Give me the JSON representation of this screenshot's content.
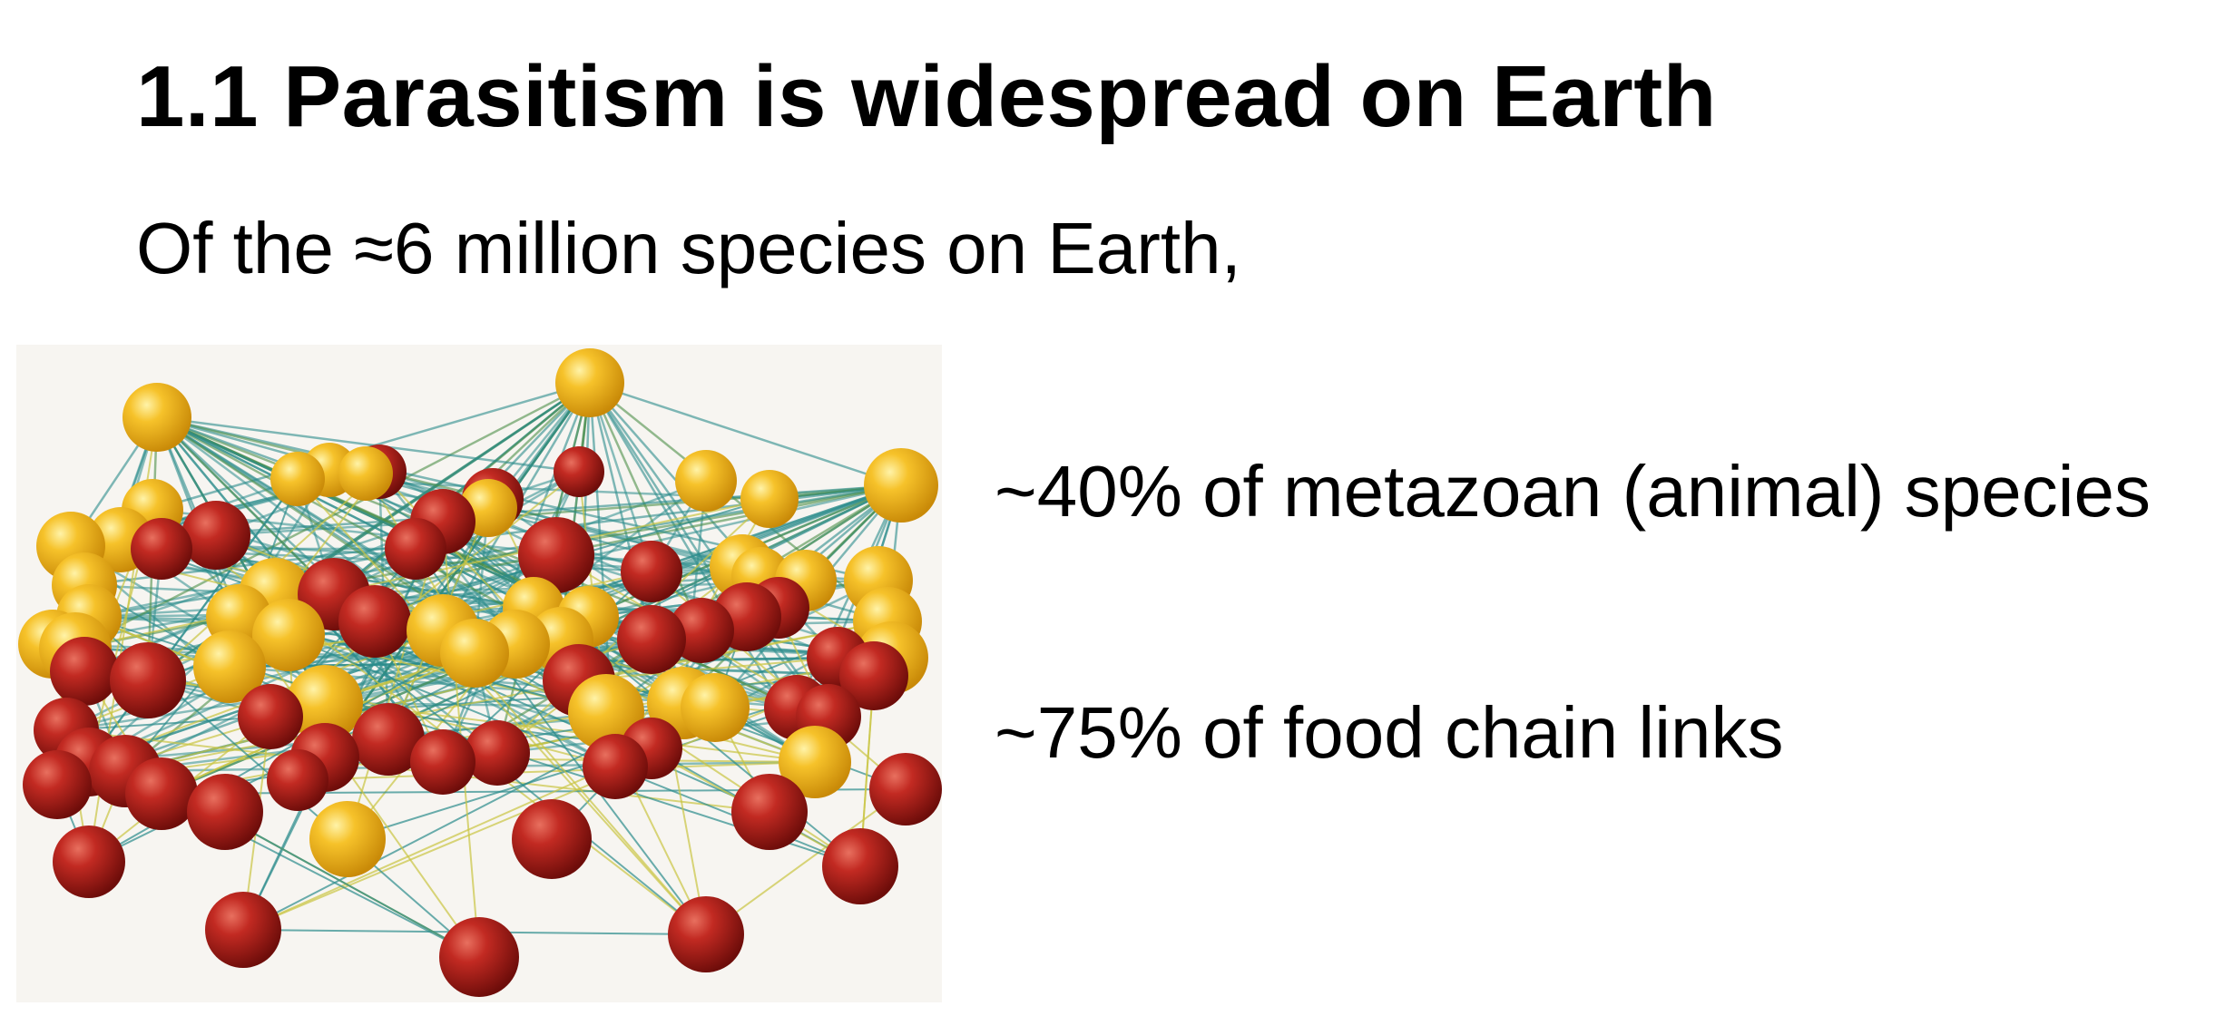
{
  "slide": {
    "title": "1.1 Parasitism is widespread on Earth",
    "intro": "Of the ≈6 million species on Earth,",
    "stats": [
      "~40% of metazoan (animal) species",
      "~75% of food chain links"
    ]
  },
  "colors": {
    "host_node": "#b8201c",
    "parasite_node": "#f2b81e",
    "link_teal": "#2b8c8c",
    "link_yellow": "#c9c542",
    "figure_background": "#f7f5f1"
  }
}
